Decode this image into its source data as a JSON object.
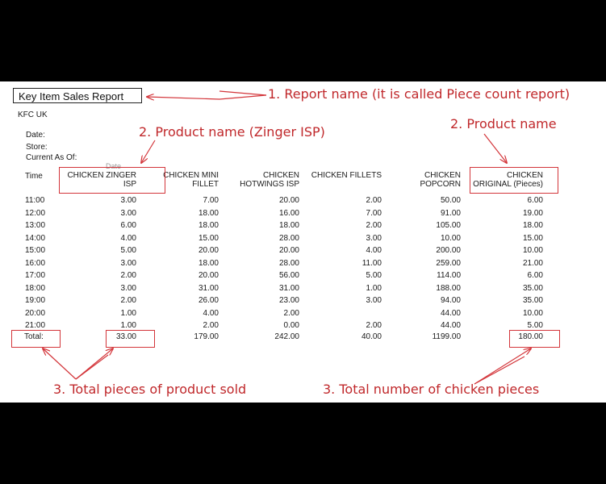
{
  "report": {
    "title": "Key Item Sales Report",
    "company": "KFC UK",
    "meta_labels": [
      "Date:",
      "Store:",
      "Current As Of:"
    ],
    "faint_date_label": "Date",
    "time_header": "Time",
    "column_headers": [
      [
        "CHICKEN ZINGER",
        "ISP"
      ],
      [
        "CHICKEN MINI",
        "FILLET"
      ],
      [
        "CHICKEN",
        "HOTWINGS ISP"
      ],
      [
        "CHICKEN FILLETS"
      ],
      [
        "CHICKEN",
        "POPCORN"
      ],
      [
        "CHICKEN",
        "ORIGINAL (Pieces)"
      ]
    ],
    "rows": [
      {
        "time": "11:00",
        "values": [
          "3.00",
          "7.00",
          "20.00",
          "2.00",
          "50.00",
          "6.00"
        ]
      },
      {
        "time": "12:00",
        "values": [
          "3.00",
          "18.00",
          "16.00",
          "7.00",
          "91.00",
          "19.00"
        ]
      },
      {
        "time": "13:00",
        "values": [
          "6.00",
          "18.00",
          "18.00",
          "2.00",
          "105.00",
          "18.00"
        ]
      },
      {
        "time": "14:00",
        "values": [
          "4.00",
          "15.00",
          "28.00",
          "3.00",
          "10.00",
          "15.00"
        ]
      },
      {
        "time": "15:00",
        "values": [
          "5.00",
          "20.00",
          "20.00",
          "4.00",
          "200.00",
          "10.00"
        ]
      },
      {
        "time": "16:00",
        "values": [
          "3.00",
          "18.00",
          "28.00",
          "11.00",
          "259.00",
          "21.00"
        ]
      },
      {
        "time": "17:00",
        "values": [
          "2.00",
          "20.00",
          "56.00",
          "5.00",
          "114.00",
          "6.00"
        ]
      },
      {
        "time": "18:00",
        "values": [
          "3.00",
          "31.00",
          "31.00",
          "1.00",
          "188.00",
          "35.00"
        ]
      },
      {
        "time": "19:00",
        "values": [
          "2.00",
          "26.00",
          "23.00",
          "3.00",
          "94.00",
          "35.00"
        ]
      },
      {
        "time": "20:00",
        "values": [
          "1.00",
          "4.00",
          "2.00",
          "",
          "44.00",
          "10.00"
        ]
      },
      {
        "time": "21:00",
        "values": [
          "1.00",
          "2.00",
          "0.00",
          "2.00",
          "44.00",
          "5.00"
        ]
      }
    ],
    "total": {
      "label": "Total:",
      "values": [
        "33.00",
        "179.00",
        "242.00",
        "40.00",
        "1199.00",
        "180.00"
      ]
    }
  },
  "annotations": {
    "report_name": "1. Report name (it is called Piece count report)",
    "product_name_zinger": "2. Product name (Zinger ISP)",
    "product_name": "2. Product name",
    "total_pieces": "3. Total pieces of product sold",
    "total_chicken": "3. Total number of chicken pieces"
  },
  "colors": {
    "annotation": "#c0282b",
    "background": "#000000",
    "sheet": "#ffffff"
  }
}
